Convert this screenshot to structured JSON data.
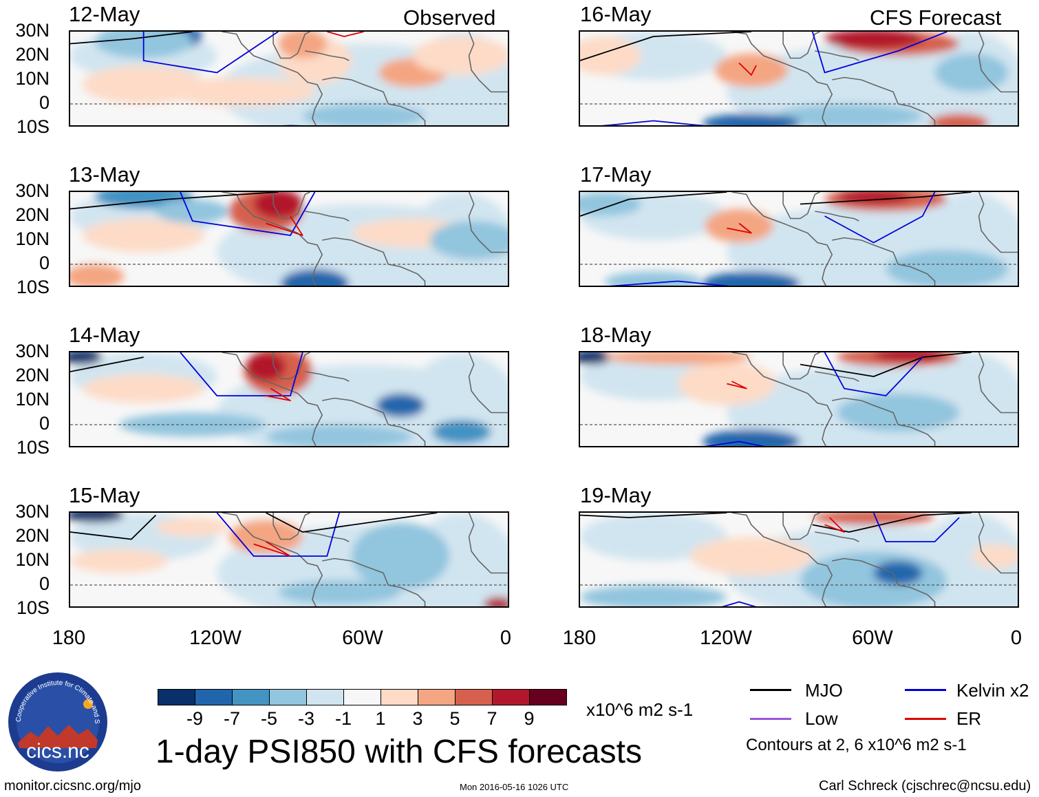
{
  "chart_data": {
    "type": "heatmap",
    "title": "1-day PSI850 with CFS forecasts",
    "units": "x10^6 m2 s-1",
    "colorbar": {
      "ticks": [
        "-9",
        "-7",
        "-5",
        "-3",
        "-1",
        "1",
        "3",
        "5",
        "7",
        "9"
      ],
      "colors": [
        "#08306b",
        "#2166ac",
        "#4393c3",
        "#92c5de",
        "#d1e5f0",
        "#f7f7f7",
        "#fddbc7",
        "#f4a582",
        "#d6604d",
        "#b2182b",
        "#67001f"
      ]
    },
    "lat_labels": [
      "30N",
      "20N",
      "10N",
      "0",
      "10S"
    ],
    "lon_labels": [
      "180",
      "120W",
      "60W",
      "0"
    ],
    "panels": [
      {
        "date": "12-May",
        "label": "Observed",
        "column": "left",
        "row": 0
      },
      {
        "date": "13-May",
        "label": "",
        "column": "left",
        "row": 1
      },
      {
        "date": "14-May",
        "label": "",
        "column": "left",
        "row": 2
      },
      {
        "date": "15-May",
        "label": "",
        "column": "left",
        "row": 3
      },
      {
        "date": "16-May",
        "label": "CFS Forecast",
        "column": "right",
        "row": 0
      },
      {
        "date": "17-May",
        "label": "",
        "column": "right",
        "row": 1
      },
      {
        "date": "18-May",
        "label": "",
        "column": "right",
        "row": 2
      },
      {
        "date": "19-May",
        "label": "",
        "column": "right",
        "row": 3
      }
    ],
    "legend": [
      {
        "label": "MJO",
        "color": "#000000"
      },
      {
        "label": "Kelvin x2",
        "color": "#0000dd"
      },
      {
        "label": "Low",
        "color": "#9955dd"
      },
      {
        "label": "ER",
        "color": "#dd0000"
      }
    ],
    "contour_note": "Contours at 2, 6 x10^6 m2 s-1"
  },
  "footer": {
    "left": "monitor.cicsnc.org/mjo",
    "center": "Mon 2016-05-16 1026 UTC",
    "right": "Carl Schreck (cjschrec@ncsu.edu)"
  },
  "logo": {
    "text": "cics.nc",
    "ring_text": "Cooperative Institute for Climate and Satellites"
  }
}
